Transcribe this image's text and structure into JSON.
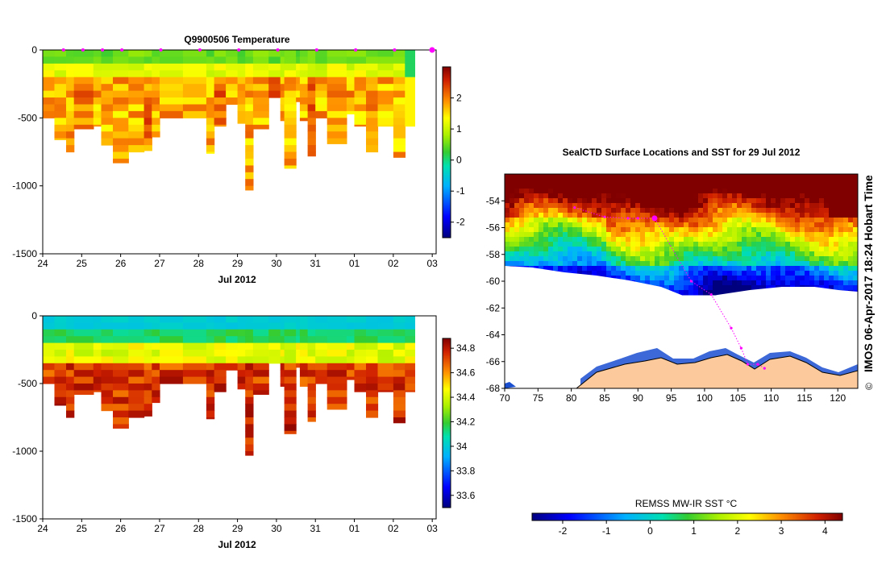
{
  "chart_data": [
    {
      "type": "heatmap",
      "title": "Q9900506  Temperature",
      "xlabel": "Jul 2012",
      "ylabel": "",
      "x_tick_labels": [
        "24",
        "25",
        "26",
        "27",
        "28",
        "29",
        "30",
        "31",
        "01",
        "02",
        "03"
      ],
      "x_range": [
        24,
        34.1
      ],
      "y_ticks": [
        0,
        -500,
        -1000,
        -1500
      ],
      "ylim": [
        -1500,
        0
      ],
      "colorbar_ticks": [
        2,
        1,
        0,
        -1,
        -2
      ],
      "colorbar_range": [
        -2.5,
        3
      ],
      "colormap": [
        "#00007f",
        "#0000ff",
        "#0080ff",
        "#00d0ff",
        "#22d66a",
        "#33cc33",
        "#aaf000",
        "#ffff00",
        "#ffb000",
        "#ff8000",
        "#e05000",
        "#b01000",
        "#800000"
      ],
      "profile_times": [
        24.45,
        24.95,
        25.45,
        25.95,
        26.95,
        27.95,
        28.95,
        29.95,
        30.95,
        31.95,
        32.95,
        33.95
      ],
      "cells_approx": "Upper ~200 m near 0–1 °C (green/yellow); below ~200 m 1.5–2.3 °C (orange/red-orange); profiles reach 500–1030 m; gap near 27.7–28.2",
      "profile_depths": [
        [
          24.0,
          500
        ],
        [
          24.3,
          660
        ],
        [
          24.6,
          750
        ],
        [
          24.8,
          580
        ],
        [
          25.3,
          560
        ],
        [
          25.5,
          700
        ],
        [
          25.8,
          830
        ],
        [
          26.2,
          750
        ],
        [
          26.6,
          740
        ],
        [
          26.8,
          640
        ],
        [
          27.0,
          500
        ],
        [
          27.6,
          500
        ],
        [
          28.2,
          760
        ],
        [
          28.4,
          560
        ],
        [
          28.7,
          400
        ],
        [
          29.0,
          540
        ],
        [
          29.2,
          1030
        ],
        [
          29.4,
          580
        ],
        [
          29.8,
          350
        ],
        [
          30.1,
          520
        ],
        [
          30.2,
          870
        ],
        [
          30.5,
          380
        ],
        [
          30.6,
          520
        ],
        [
          30.8,
          780
        ],
        [
          31.0,
          500
        ],
        [
          31.3,
          690
        ],
        [
          31.8,
          470
        ],
        [
          32.0,
          560
        ],
        [
          32.3,
          750
        ],
        [
          32.6,
          560
        ],
        [
          33.0,
          790
        ],
        [
          33.3,
          560
        ]
      ]
    },
    {
      "type": "heatmap",
      "title": "",
      "xlabel": "Jul 2012",
      "ylabel": "",
      "x_tick_labels": [
        "24",
        "25",
        "26",
        "27",
        "28",
        "29",
        "30",
        "31",
        "01",
        "02",
        "03"
      ],
      "x_range": [
        24,
        34.1
      ],
      "y_ticks": [
        0,
        -500,
        -1000,
        -1500
      ],
      "ylim": [
        -1500,
        0
      ],
      "colorbar_ticks": [
        34.8,
        34.6,
        34.4,
        34.2,
        34,
        33.8,
        33.6
      ],
      "colorbar_range": [
        33.5,
        34.88
      ],
      "colormap": [
        "#00007f",
        "#0000ff",
        "#0080ff",
        "#00d0ff",
        "#22d66a",
        "#33cc33",
        "#aaf000",
        "#ffff00",
        "#ffb000",
        "#ff8000",
        "#e05000",
        "#b01000",
        "#800000"
      ],
      "cells_approx": "Upper ~150 m near 34.0–34.2 (cyan/green); increasing with depth to 34.6–34.8 (orange/dark red) below ~400 m"
    },
    {
      "type": "heatmap",
      "title": "SealCTD Surface Locations and SST for 29 Jul 2012",
      "xlabel": "",
      "ylabel": "",
      "x_tick_labels": [
        "70",
        "75",
        "80",
        "85",
        "90",
        "95",
        "100",
        "105",
        "110",
        "115",
        "120"
      ],
      "y_tick_labels": [
        "-54",
        "-56",
        "-58",
        "-60",
        "-62",
        "-64",
        "-66",
        "-68"
      ],
      "xlim": [
        70,
        123
      ],
      "ylim": [
        -68,
        -52
      ],
      "colorbar_label": "REMSS MW-IR SST °C",
      "colorbar_ticks": [
        "-2",
        "-1",
        "0",
        "1",
        "2",
        "3",
        "4"
      ],
      "colorbar_range": [
        -2.7,
        4.4
      ],
      "track_points": [
        [
          80.5,
          -54.5
        ],
        [
          85,
          -55.2
        ],
        [
          88.5,
          -55.3
        ],
        [
          90,
          -55.3
        ],
        [
          92.5,
          -55.3
        ],
        [
          98,
          -60
        ],
        [
          101,
          -61
        ],
        [
          104,
          -63.5
        ],
        [
          105.5,
          -65
        ],
        [
          106.5,
          -66.2
        ],
        [
          108,
          -66.2
        ],
        [
          109,
          -66.5
        ]
      ],
      "current_position": [
        92.5,
        -55.3
      ],
      "coastline_lat_approx": -66.3,
      "sst_pattern": "Warm 2–4 °C north of ~-56; cooler 0–1 °C band near -58; -1 to 0 °C patches near -59 to -60; sea-ice/no-data white region south of ~-61; Antarctic land (tan) south of ~-66"
    }
  ],
  "side_text": "IMOS 06-Apr-2017 18:24 Hobart Time",
  "copyright": "©"
}
